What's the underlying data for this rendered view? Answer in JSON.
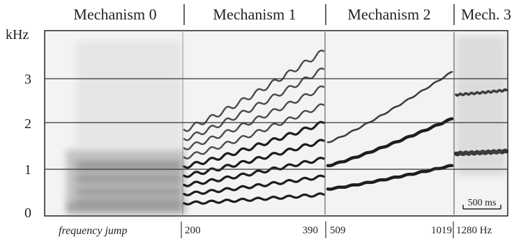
{
  "header": {
    "mechanisms": [
      "Mechanism 0",
      "Mechanism 1",
      "Mechanism 2",
      "Mech. 3"
    ]
  },
  "y_axis": {
    "unit": "kHz",
    "ticks": [
      "3",
      "2",
      "1",
      "0"
    ]
  },
  "footer": {
    "caption": "frequency jump",
    "markers": [
      "200",
      "390",
      "509",
      "1019",
      "1280 Hz"
    ]
  },
  "scale_bar": {
    "label": "500 ms"
  },
  "colors": {
    "ink": "#222222",
    "spectrogram_background": "#f2f2f2",
    "harmonic": "#111111"
  }
}
